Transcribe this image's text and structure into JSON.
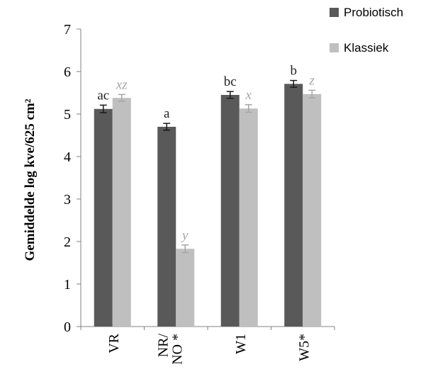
{
  "chart_data": {
    "type": "bar",
    "categories": [
      "VR",
      "NR/\nNO *",
      "W1",
      "W5*"
    ],
    "series": [
      {
        "name": "Probiotisch",
        "color": "#595959",
        "values": [
          5.12,
          4.7,
          5.45,
          5.71
        ],
        "errors": [
          0.09,
          0.08,
          0.08,
          0.08
        ],
        "significance": [
          "ac",
          "a",
          "bc",
          "b"
        ]
      },
      {
        "name": "Klassiek",
        "color": "#bfbfbf",
        "values": [
          5.38,
          1.83,
          5.13,
          5.47
        ],
        "errors": [
          0.08,
          0.09,
          0.09,
          0.09
        ],
        "significance": [
          "xz",
          "y",
          "x",
          "z"
        ]
      }
    ],
    "ylabel": "Gemiddelde log kve/625 cm²",
    "xlabel": "",
    "ylim": [
      0,
      7
    ],
    "yticks": [
      "0",
      "1",
      "2",
      "3",
      "4",
      "5",
      "6",
      "7"
    ],
    "grid": false,
    "legend_position": "top-right"
  }
}
